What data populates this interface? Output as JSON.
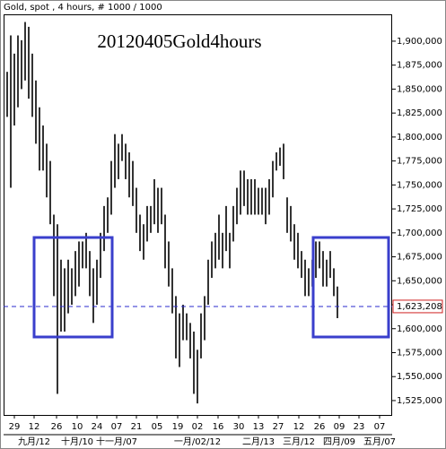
{
  "chart_data": {
    "type": "range_bar",
    "header": "Gold, spot , 4 hours, # 1000 / 1000",
    "annotation": "20120405Gold4hours",
    "color": "#000000",
    "high": [
      1868000,
      1906000,
      1887000,
      1906000,
      1901000,
      1920000,
      1915000,
      1887000,
      1859000,
      1831000,
      1812000,
      1793000,
      1775000,
      1719000,
      1709000,
      1672000,
      1663000,
      1672000,
      1663000,
      1681000,
      1691000,
      1691000,
      1700000,
      1681000,
      1663000,
      1672000,
      1700000,
      1728000,
      1737000,
      1775000,
      1803000,
      1793000,
      1803000,
      1793000,
      1784000,
      1775000,
      1747000,
      1719000,
      1709000,
      1728000,
      1728000,
      1756000,
      1747000,
      1747000,
      1719000,
      1691000,
      1663000,
      1634000,
      1616000,
      1625000,
      1616000,
      1606000,
      1597000,
      1578000,
      1616000,
      1634000,
      1672000,
      1691000,
      1700000,
      1719000,
      1700000,
      1728000,
      1700000,
      1728000,
      1747000,
      1765000,
      1765000,
      1756000,
      1756000,
      1756000,
      1747000,
      1747000,
      1747000,
      1756000,
      1775000,
      1784000,
      1789000,
      1793000,
      1737000,
      1728000,
      1709000,
      1700000,
      1681000,
      1672000,
      1663000,
      1672000,
      1691000,
      1691000,
      1681000,
      1672000,
      1681000,
      1663000,
      1644000
    ],
    "low": [
      1821000,
      1747000,
      1812000,
      1831000,
      1850000,
      1859000,
      1840000,
      1821000,
      1793000,
      1765000,
      1765000,
      1737000,
      1709000,
      1634000,
      1532000,
      1597000,
      1597000,
      1616000,
      1625000,
      1634000,
      1644000,
      1663000,
      1663000,
      1634000,
      1606000,
      1625000,
      1653000,
      1681000,
      1700000,
      1719000,
      1747000,
      1756000,
      1775000,
      1756000,
      1737000,
      1728000,
      1700000,
      1681000,
      1672000,
      1691000,
      1700000,
      1709000,
      1700000,
      1709000,
      1663000,
      1644000,
      1616000,
      1569000,
      1560000,
      1588000,
      1588000,
      1569000,
      1532000,
      1522000,
      1569000,
      1588000,
      1625000,
      1653000,
      1663000,
      1672000,
      1663000,
      1681000,
      1663000,
      1691000,
      1709000,
      1719000,
      1728000,
      1719000,
      1719000,
      1719000,
      1719000,
      1719000,
      1709000,
      1719000,
      1737000,
      1765000,
      1770000,
      1756000,
      1700000,
      1691000,
      1672000,
      1663000,
      1653000,
      1634000,
      1634000,
      1644000,
      1653000,
      1663000,
      1644000,
      1644000,
      1653000,
      1634000,
      1611000
    ],
    "xlim": [
      -1,
      107.25
    ],
    "xticks": [
      {
        "value": 2,
        "label": "29"
      },
      {
        "value": 7.5,
        "label": "12"
      },
      {
        "value": 13.75,
        "label": "26"
      },
      {
        "value": 19.5,
        "label": "10"
      },
      {
        "value": 25,
        "label": "24"
      },
      {
        "value": 30.5,
        "label": "07"
      },
      {
        "value": 36,
        "label": "21"
      },
      {
        "value": 41.75,
        "label": "05"
      },
      {
        "value": 47.5,
        "label": "19"
      },
      {
        "value": 53,
        "label": "02"
      },
      {
        "value": 58.75,
        "label": "16"
      },
      {
        "value": 64.5,
        "label": "30"
      },
      {
        "value": 70,
        "label": "13"
      },
      {
        "value": 75.5,
        "label": "27"
      },
      {
        "value": 81.25,
        "label": "12"
      },
      {
        "value": 87,
        "label": "26"
      },
      {
        "value": 92.5,
        "label": "09"
      },
      {
        "value": 98,
        "label": "23"
      },
      {
        "value": 103.75,
        "label": "07"
      }
    ],
    "month_labels": [
      {
        "value": 7.5,
        "label": "九月/12"
      },
      {
        "value": 19.5,
        "label": "十月/10"
      },
      {
        "value": 30.5,
        "label": "十一月/07"
      },
      {
        "value": 53,
        "label": "一月/02/12"
      },
      {
        "value": 70,
        "label": "二月/13"
      },
      {
        "value": 81.25,
        "label": "三月/12"
      },
      {
        "value": 92.5,
        "label": "四月/09"
      },
      {
        "value": 103.75,
        "label": "五月/07"
      }
    ],
    "ylim": [
      1510000,
      1928000
    ],
    "yticks": [
      {
        "value": 1525000,
        "label": "1,525,000"
      },
      {
        "value": 1550000,
        "label": "1,550,000"
      },
      {
        "value": 1575000,
        "label": "1,575,000"
      },
      {
        "value": 1600000,
        "label": "1,600,000"
      },
      {
        "value": 1625000,
        "label": "1,625,000"
      },
      {
        "value": 1650000,
        "label": "1,650,000"
      },
      {
        "value": 1675000,
        "label": "1,675,000"
      },
      {
        "value": 1700000,
        "label": "1,700,000"
      },
      {
        "value": 1725000,
        "label": "1,725,000"
      },
      {
        "value": 1750000,
        "label": "1,750,000"
      },
      {
        "value": 1775000,
        "label": "1,775,000"
      },
      {
        "value": 1800000,
        "label": "1,800,000"
      },
      {
        "value": 1825000,
        "label": "1,825,000"
      },
      {
        "value": 1850000,
        "label": "1,850,000"
      },
      {
        "value": 1875000,
        "label": "1,875,000"
      },
      {
        "value": 1900000,
        "label": "1,900,000"
      }
    ],
    "current_price": {
      "value": 1623208,
      "label": "1,623,208"
    }
  }
}
